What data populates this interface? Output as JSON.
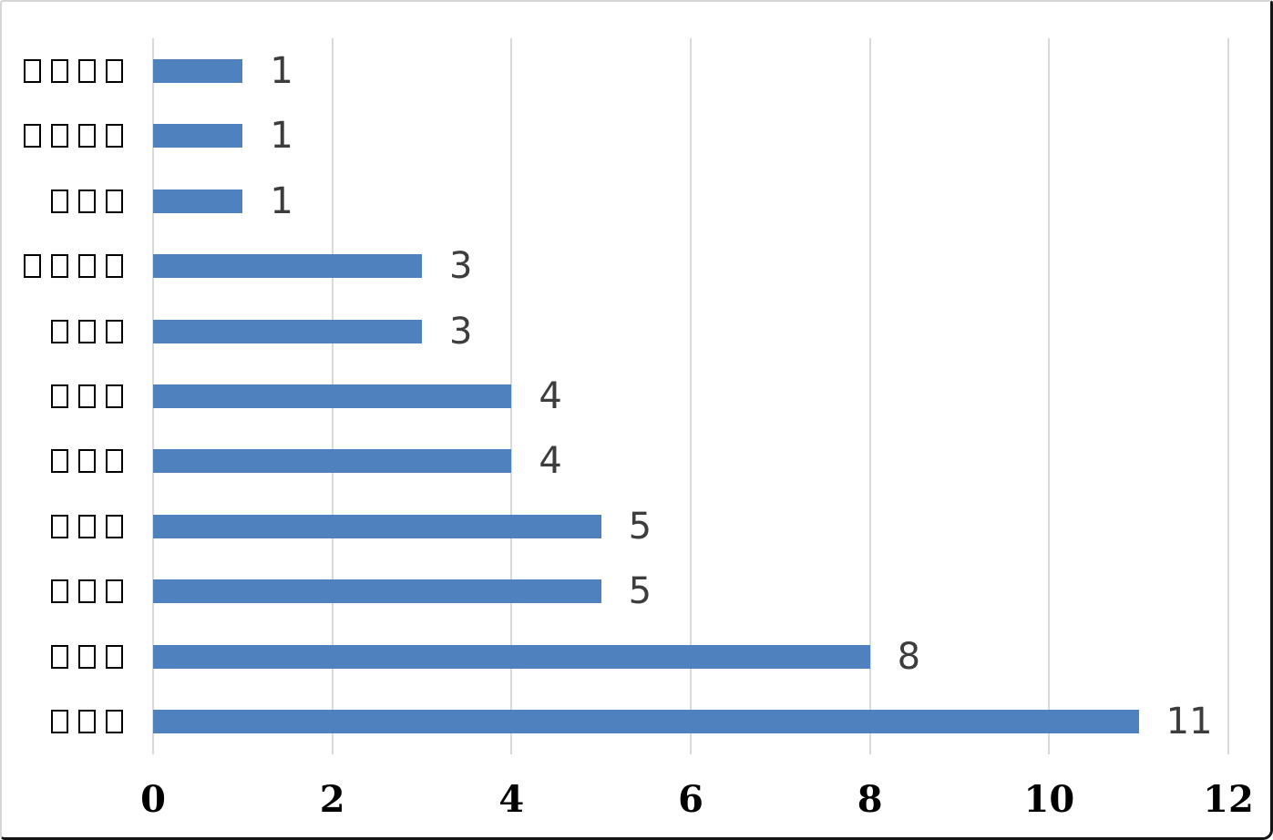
{
  "chart_data": {
    "type": "bar",
    "orientation": "horizontal",
    "title": "",
    "categories": [
      "□□□□",
      "□□□□",
      "□□□",
      "□□□□",
      "□□□",
      "□□□",
      "□□□",
      "□□□",
      "□□□",
      "□□□",
      "□□□"
    ],
    "values": [
      1,
      1,
      1,
      3,
      3,
      4,
      4,
      5,
      5,
      8,
      11
    ],
    "data_labels": [
      "1",
      "1",
      "1",
      "3",
      "3",
      "4",
      "4",
      "5",
      "5",
      "8",
      "11"
    ],
    "x_axis": {
      "min": 0,
      "max": 12,
      "ticks": [
        0,
        2,
        4,
        6,
        8,
        10,
        12
      ],
      "tick_labels": [
        "0",
        "2",
        "4",
        "6",
        "8",
        "10",
        "12"
      ]
    },
    "y_axis_note": "category labels rendered as missing-glyph (tofu) boxes",
    "legend": "none",
    "grid": "vertical-only",
    "colors": {
      "bar": "#4e81bd",
      "gridline": "#d9d9d9",
      "value_label": "#3d3d3d",
      "axis_tick_label": "#000000",
      "category_glyph": "#000000",
      "background": "#ffffff"
    }
  }
}
